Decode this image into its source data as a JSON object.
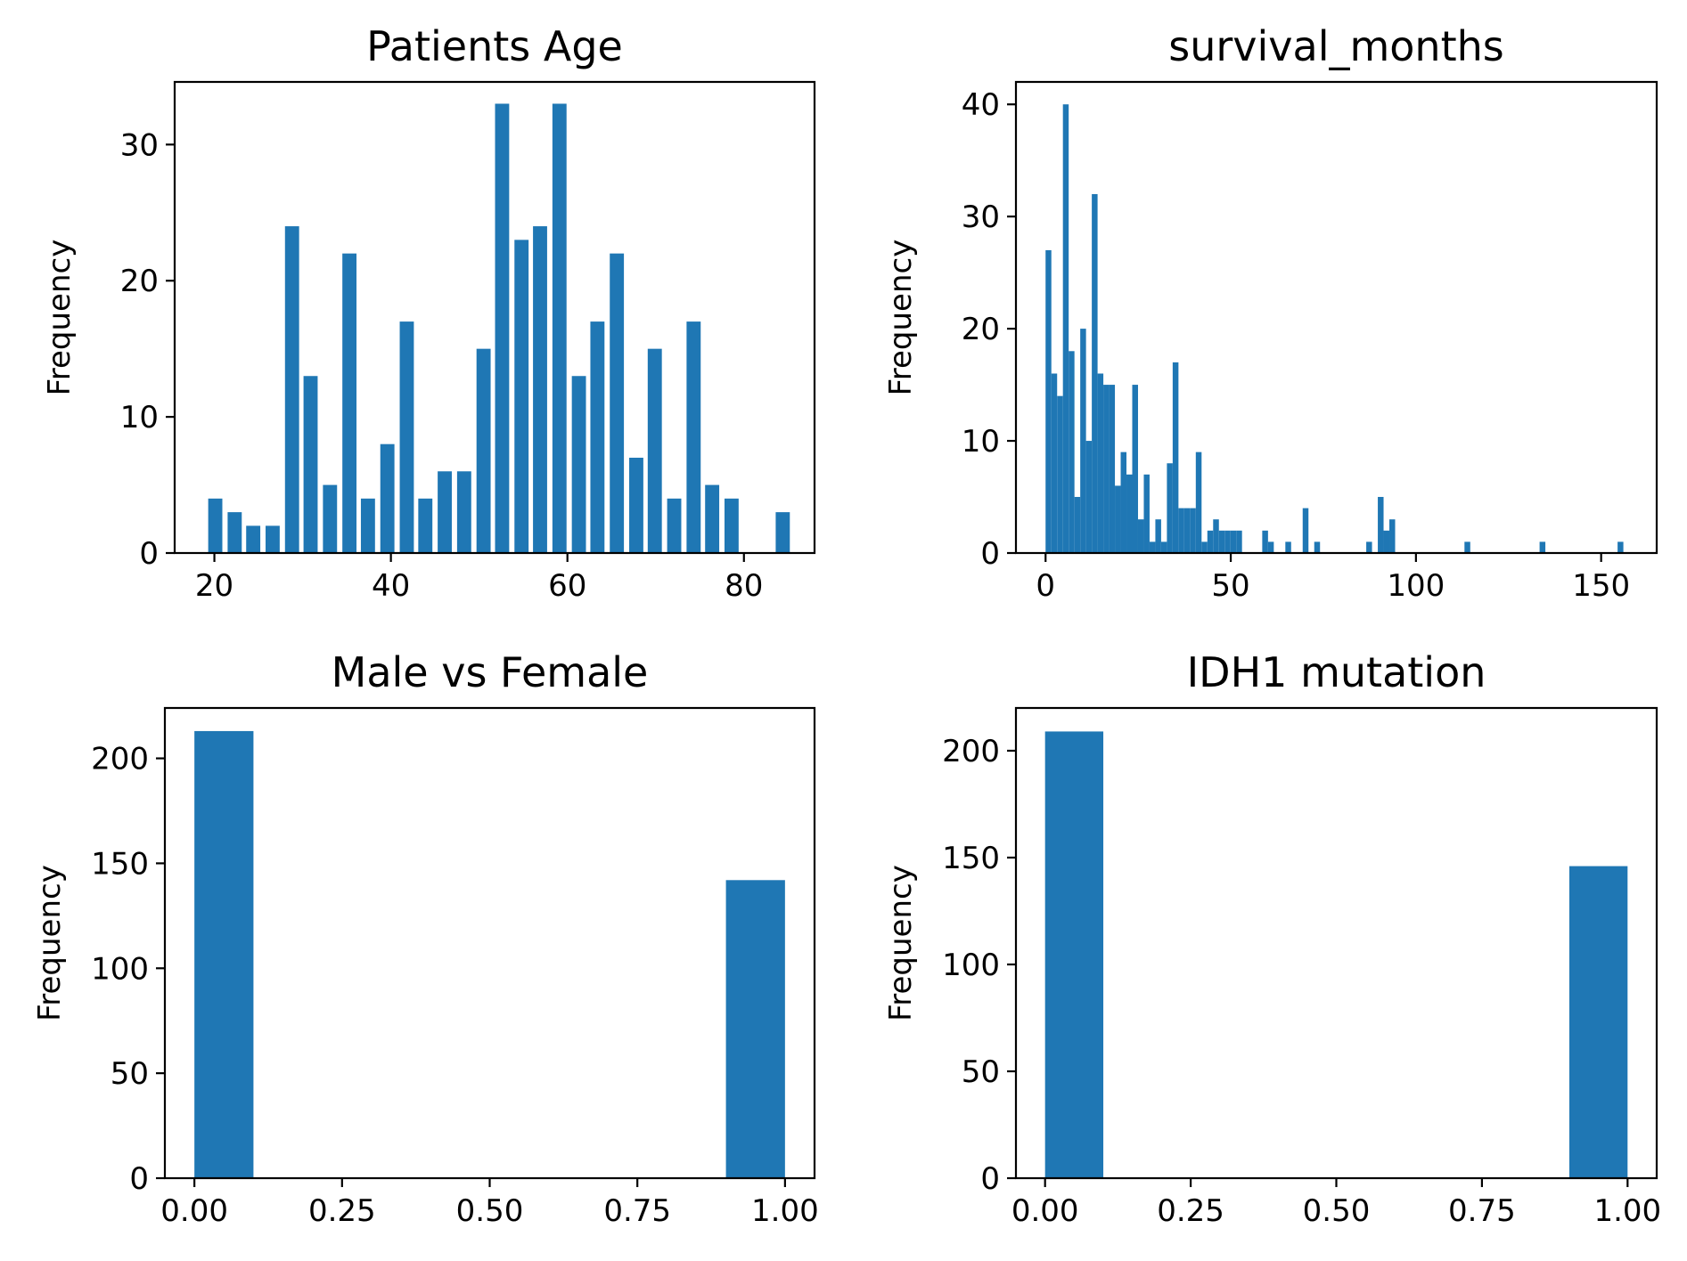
{
  "chart_data": [
    {
      "type": "bar",
      "title": "Patients Age",
      "xlabel": "",
      "ylabel": "Frequency",
      "xlim": [
        15.5,
        88.0
      ],
      "ylim": [
        0,
        34.6
      ],
      "xticks": [
        20,
        40,
        60,
        80
      ],
      "yticks": [
        0,
        10,
        20,
        30
      ],
      "bar_width": 1.6,
      "color": "#1f77b4",
      "x": [
        20.1,
        22.3,
        24.4,
        26.6,
        28.8,
        30.9,
        33.1,
        35.3,
        37.4,
        39.6,
        41.8,
        43.9,
        46.1,
        48.3,
        50.5,
        52.6,
        54.8,
        56.9,
        59.1,
        61.3,
        63.4,
        65.6,
        67.8,
        69.9,
        72.1,
        74.3,
        76.4,
        78.6,
        80.8,
        84.4
      ],
      "values": [
        4,
        3,
        2,
        2,
        24,
        13,
        5,
        22,
        4,
        8,
        17,
        4,
        6,
        6,
        15,
        33,
        23,
        24,
        33,
        13,
        17,
        22,
        7,
        15,
        4,
        17,
        5,
        4,
        0,
        3
      ]
    },
    {
      "type": "bar",
      "title": "survival_months",
      "xlabel": "",
      "ylabel": "Frequency",
      "xlim": [
        -8,
        165
      ],
      "ylim": [
        0,
        42
      ],
      "xticks": [
        0,
        50,
        100,
        150
      ],
      "yticks": [
        0,
        10,
        20,
        30,
        40
      ],
      "bar_width": 1.56,
      "color": "#1f77b4",
      "x": [
        0.78,
        2.34,
        3.9,
        5.46,
        7.02,
        8.58,
        10.14,
        11.7,
        13.26,
        14.82,
        16.38,
        17.94,
        19.5,
        21.06,
        22.62,
        24.18,
        25.74,
        27.3,
        28.86,
        30.42,
        31.98,
        33.54,
        35.1,
        36.66,
        38.22,
        39.78,
        41.34,
        42.9,
        44.46,
        46.02,
        47.58,
        49.14,
        50.7,
        52.26,
        59.28,
        60.84,
        62.4,
        65.52,
        70.2,
        73.32,
        87.36,
        90.48,
        92.04,
        93.6,
        113.88,
        134.16,
        155.22
      ],
      "values": [
        27,
        16,
        14,
        40,
        18,
        5,
        20,
        10,
        32,
        16,
        15,
        15,
        6,
        9,
        7,
        15,
        3,
        7,
        1,
        3,
        1,
        8,
        17,
        4,
        4,
        4,
        9,
        1,
        2,
        3,
        2,
        2,
        2,
        2,
        2,
        1,
        0,
        1,
        4,
        1,
        1,
        5,
        2,
        3,
        1,
        1,
        1
      ]
    },
    {
      "type": "bar",
      "title": "Male vs Female",
      "xlabel": "",
      "ylabel": "Frequency",
      "xlim": [
        -0.05,
        1.05
      ],
      "ylim": [
        0,
        224
      ],
      "xticks": [
        0.0,
        0.25,
        0.5,
        0.75,
        1.0
      ],
      "xticklabels": [
        "0.00",
        "0.25",
        "0.50",
        "0.75",
        "1.00"
      ],
      "yticks": [
        0,
        50,
        100,
        150,
        200
      ],
      "bar_width": 0.1,
      "color": "#1f77b4",
      "x": [
        0.05,
        0.95
      ],
      "values": [
        213,
        142
      ]
    },
    {
      "type": "bar",
      "title": "IDH1 mutation",
      "xlabel": "",
      "ylabel": "Frequency",
      "xlim": [
        -0.05,
        1.05
      ],
      "ylim": [
        0,
        220
      ],
      "xticks": [
        0.0,
        0.25,
        0.5,
        0.75,
        1.0
      ],
      "xticklabels": [
        "0.00",
        "0.25",
        "0.50",
        "0.75",
        "1.00"
      ],
      "yticks": [
        0,
        50,
        100,
        150,
        200
      ],
      "bar_width": 0.1,
      "color": "#1f77b4",
      "x": [
        0.05,
        0.95
      ],
      "values": [
        209,
        146
      ]
    }
  ]
}
